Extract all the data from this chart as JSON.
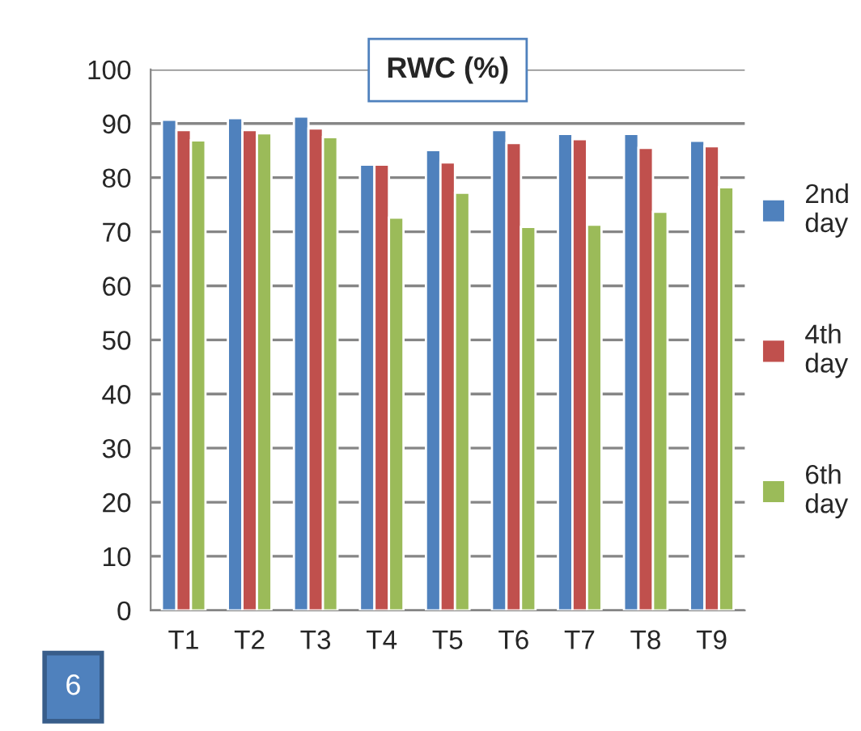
{
  "chart_data": {
    "type": "bar",
    "title": "RWC (%)",
    "categories": [
      "T1",
      "T2",
      "T3",
      "T4",
      "T5",
      "T6",
      "T7",
      "T8",
      "T9"
    ],
    "series": [
      {
        "name": "2nd day",
        "color": "#4f81bd",
        "values": [
          90.7,
          91.0,
          91.3,
          82.4,
          85.1,
          88.8,
          88.1,
          88.1,
          86.8
        ]
      },
      {
        "name": "4th day",
        "color": "#c0504d",
        "values": [
          88.8,
          88.8,
          89.1,
          82.4,
          82.8,
          86.4,
          87.1,
          85.5,
          85.8
        ]
      },
      {
        "name": "6th day",
        "color": "#9bbb59",
        "values": [
          86.9,
          88.2,
          87.5,
          72.6,
          77.2,
          70.9,
          71.3,
          73.7,
          78.2
        ]
      }
    ],
    "ylim": [
      0,
      100
    ],
    "yticks": [
      0,
      10,
      20,
      30,
      40,
      50,
      60,
      70,
      80,
      90,
      100
    ],
    "grid": "y",
    "legend": "right",
    "annotations": [
      "6"
    ]
  }
}
